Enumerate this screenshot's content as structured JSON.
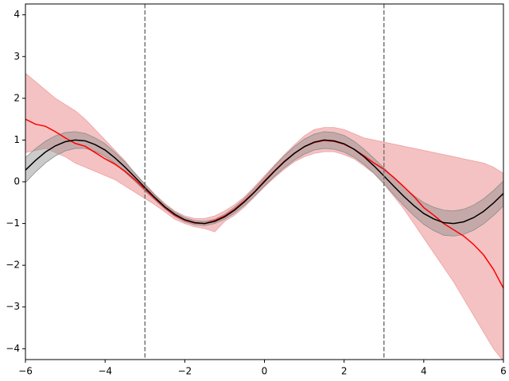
{
  "chart_data": {
    "type": "line",
    "x": [
      -6,
      -5.75,
      -5.5,
      -5.25,
      -5,
      -4.75,
      -4.5,
      -4.25,
      -4,
      -3.75,
      -3.5,
      -3.25,
      -3,
      -2.75,
      -2.5,
      -2.25,
      -2,
      -1.75,
      -1.5,
      -1.25,
      -1,
      -0.75,
      -0.5,
      -0.25,
      0,
      0.25,
      0.5,
      0.75,
      1,
      1.25,
      1.5,
      1.75,
      2,
      2.25,
      2.5,
      2.75,
      3,
      3.25,
      3.5,
      3.75,
      4,
      4.25,
      4.5,
      4.75,
      5,
      5.25,
      5.5,
      5.75,
      6
    ],
    "bands": [
      {
        "color": "#f4c2c2",
        "edge": "#eea0a0",
        "lower": [
          0.7,
          0.75,
          0.8,
          0.7,
          0.6,
          0.45,
          0.35,
          0.25,
          0.15,
          0.05,
          -0.1,
          -0.25,
          -0.4,
          -0.55,
          -0.72,
          -0.9,
          -1.0,
          -1.08,
          -1.12,
          -1.2,
          -0.95,
          -0.8,
          -0.6,
          -0.36,
          -0.12,
          0.1,
          0.3,
          0.48,
          0.6,
          0.68,
          0.72,
          0.72,
          0.65,
          0.55,
          0.38,
          0.2,
          -0.05,
          -0.35,
          -0.65,
          -1.0,
          -1.35,
          -1.7,
          -2.05,
          -2.4,
          -2.8,
          -3.2,
          -3.6,
          -4.0,
          -4.3
        ],
        "upper": [
          2.6,
          2.4,
          2.2,
          2.0,
          1.85,
          1.7,
          1.5,
          1.25,
          1.0,
          0.75,
          0.5,
          0.2,
          -0.05,
          -0.3,
          -0.52,
          -0.7,
          -0.82,
          -0.88,
          -0.88,
          -0.82,
          -0.7,
          -0.55,
          -0.36,
          -0.12,
          0.14,
          0.4,
          0.65,
          0.88,
          1.1,
          1.25,
          1.3,
          1.3,
          1.25,
          1.15,
          1.05,
          1.0,
          0.95,
          0.9,
          0.85,
          0.8,
          0.75,
          0.7,
          0.65,
          0.6,
          0.55,
          0.5,
          0.45,
          0.35,
          0.2
        ]
      },
      {
        "color": "#8c8c8c",
        "edge": "#8c8c8c",
        "lower": [
          -0.02,
          0.23,
          0.45,
          0.62,
          0.74,
          0.8,
          0.8,
          0.73,
          0.61,
          0.44,
          0.23,
          0.01,
          -0.22,
          -0.44,
          -0.65,
          -0.83,
          -0.96,
          -1.03,
          -1.05,
          -1.0,
          -0.9,
          -0.75,
          -0.56,
          -0.34,
          -0.1,
          0.13,
          0.34,
          0.52,
          0.66,
          0.76,
          0.8,
          0.78,
          0.71,
          0.59,
          0.42,
          0.2,
          -0.05,
          -0.31,
          -0.57,
          -0.81,
          -1.02,
          -1.17,
          -1.28,
          -1.3,
          -1.26,
          -1.16,
          -1.01,
          -0.81,
          -0.58
        ],
        "upper": [
          0.58,
          0.79,
          0.97,
          1.1,
          1.18,
          1.2,
          1.16,
          1.05,
          0.91,
          0.7,
          0.47,
          0.21,
          -0.06,
          -0.32,
          -0.55,
          -0.73,
          -0.86,
          -0.93,
          -0.95,
          -0.9,
          -0.78,
          -0.61,
          -0.4,
          -0.16,
          0.1,
          0.37,
          0.62,
          0.84,
          1.02,
          1.14,
          1.2,
          1.18,
          1.11,
          0.97,
          0.78,
          0.56,
          0.33,
          0.09,
          -0.13,
          -0.33,
          -0.5,
          -0.61,
          -0.68,
          -0.7,
          -0.66,
          -0.56,
          -0.41,
          -0.21,
          0.02
        ]
      }
    ],
    "series": [
      {
        "color": "#ff0000",
        "values": [
          1.5,
          1.38,
          1.33,
          1.2,
          1.05,
          0.92,
          0.85,
          0.7,
          0.55,
          0.42,
          0.25,
          0.05,
          -0.18,
          -0.4,
          -0.62,
          -0.8,
          -0.92,
          -0.99,
          -1.0,
          -0.93,
          -0.82,
          -0.66,
          -0.46,
          -0.24,
          0.02,
          0.26,
          0.49,
          0.68,
          0.84,
          0.94,
          0.99,
          0.97,
          0.9,
          0.78,
          0.62,
          0.45,
          0.3,
          0.1,
          -0.12,
          -0.35,
          -0.62,
          -0.8,
          -1.0,
          -1.15,
          -1.3,
          -1.5,
          -1.75,
          -2.1,
          -2.55
        ]
      },
      {
        "color": "#000000",
        "values": [
          0.28,
          0.51,
          0.71,
          0.86,
          0.96,
          1.0,
          0.98,
          0.89,
          0.76,
          0.57,
          0.35,
          0.11,
          -0.14,
          -0.38,
          -0.6,
          -0.78,
          -0.91,
          -0.98,
          -1.0,
          -0.95,
          -0.84,
          -0.68,
          -0.48,
          -0.25,
          0,
          0.25,
          0.48,
          0.68,
          0.84,
          0.95,
          1.0,
          0.98,
          0.91,
          0.78,
          0.6,
          0.38,
          0.14,
          -0.11,
          -0.35,
          -0.57,
          -0.76,
          -0.89,
          -0.98,
          -1.0,
          -0.96,
          -0.86,
          -0.71,
          -0.51,
          -0.28
        ]
      }
    ],
    "vlines": [
      -3,
      3
    ],
    "vline_color": "#777777",
    "xlim": [
      -6,
      6
    ],
    "ylim": [
      -4.26,
      4.26
    ],
    "xticks": [
      {
        "value": -6,
        "label": "−6"
      },
      {
        "value": -4,
        "label": "−4"
      },
      {
        "value": -2,
        "label": "−2"
      },
      0,
      2,
      4,
      6
    ],
    "yticks": [
      {
        "value": -4,
        "label": "−4"
      },
      {
        "value": -3,
        "label": "−3"
      },
      {
        "value": -2,
        "label": "−2"
      },
      {
        "value": -1,
        "label": "−1"
      },
      0,
      1,
      2,
      3,
      4
    ]
  }
}
